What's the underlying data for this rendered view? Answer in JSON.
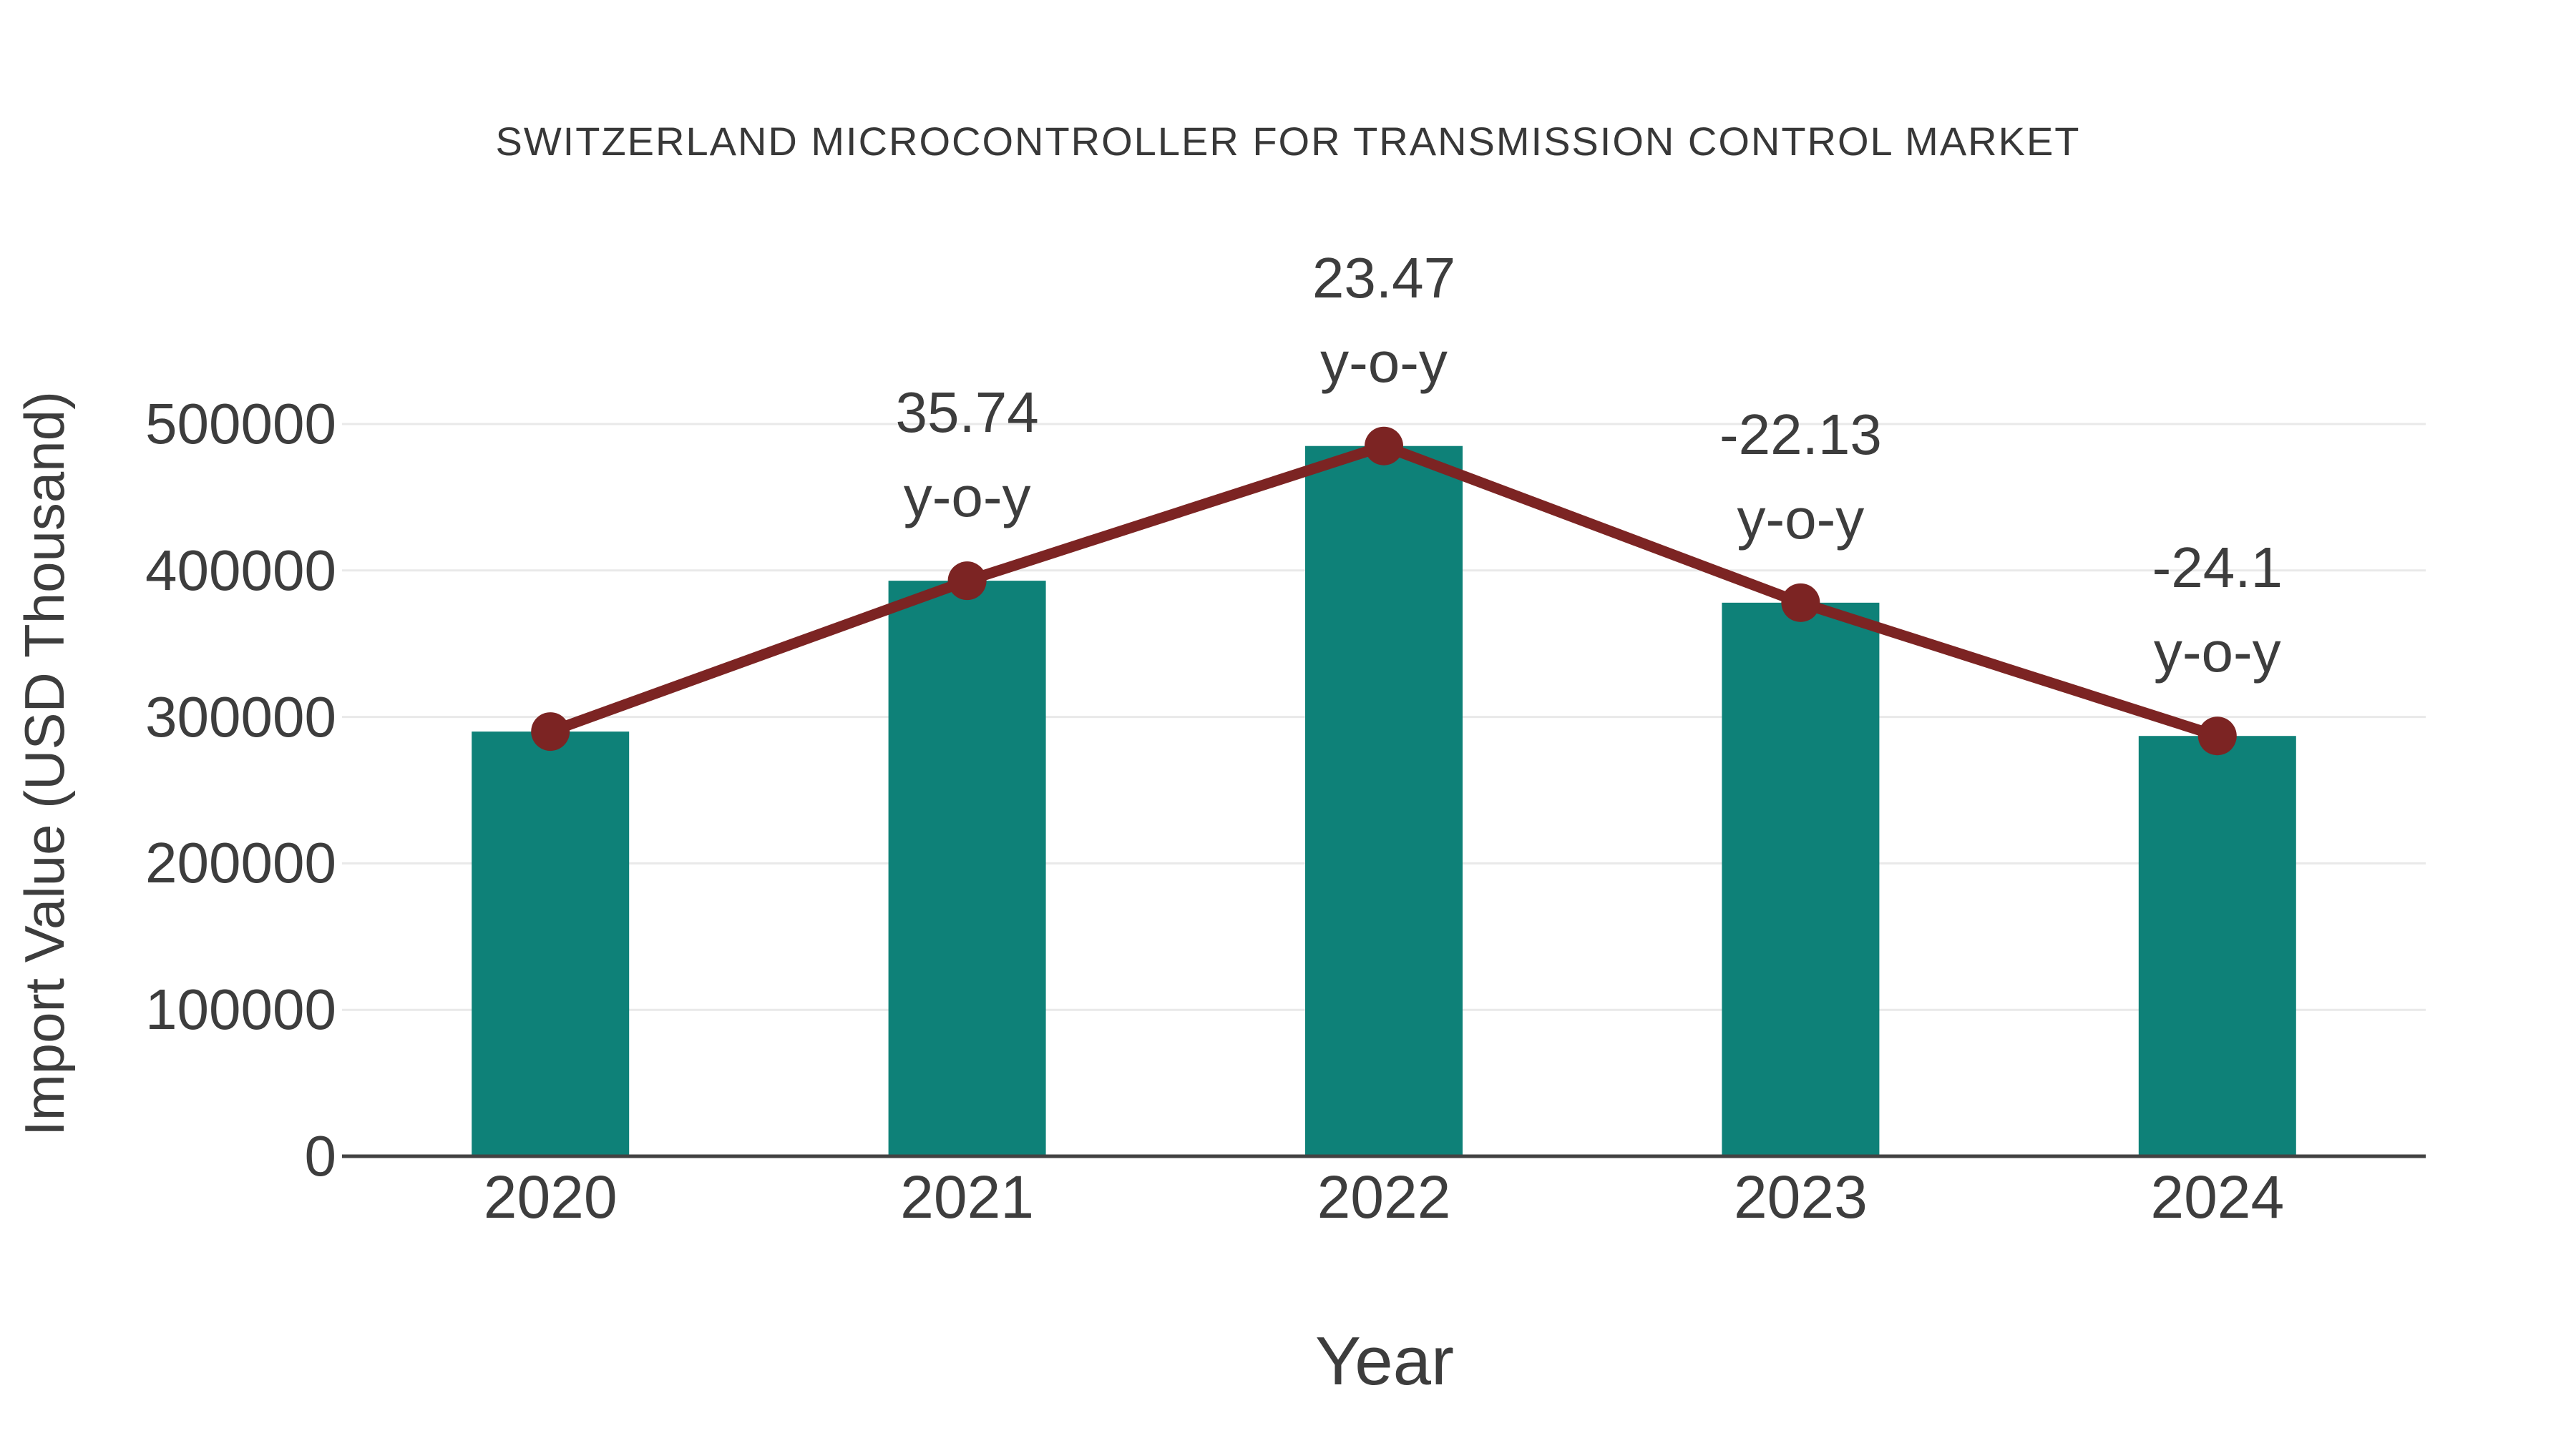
{
  "title": "SWITZERLAND MICROCONTROLLER FOR TRANSMISSION CONTROL MARKET",
  "chart_data": {
    "type": "bar",
    "categories": [
      "2020",
      "2021",
      "2022",
      "2023",
      "2024"
    ],
    "series": [
      {
        "name": "Import Value",
        "type": "bar",
        "values": [
          290000,
          393000,
          485000,
          378000,
          287000
        ]
      },
      {
        "name": "y-o-y change (%)",
        "type": "line",
        "values": [
          null,
          35.74,
          23.47,
          -22.13,
          -24.1
        ]
      }
    ],
    "annotations": [
      {
        "category": "2021",
        "line1": "35.74",
        "line2": "y-o-y"
      },
      {
        "category": "2022",
        "line1": "23.47",
        "line2": "y-o-y"
      },
      {
        "category": "2023",
        "line1": "-22.13",
        "line2": "y-o-y"
      },
      {
        "category": "2024",
        "line1": "-24.1",
        "line2": "y-o-y"
      }
    ],
    "xlabel": "Year",
    "ylabel": "Import Value (USD Thousand)",
    "yticks": [
      0,
      100000,
      200000,
      300000,
      400000,
      500000
    ],
    "ylim": [
      0,
      500000
    ],
    "grid": true,
    "legend_position": "none"
  },
  "colors": {
    "bar": "#0e8178",
    "line": "#7c2423",
    "marker": "#7c2423",
    "axis": "#424242",
    "gridline": "#e9e9e9",
    "tick_text": "#3d3d3d",
    "title_text": "#383838",
    "background": "#ffffff"
  }
}
